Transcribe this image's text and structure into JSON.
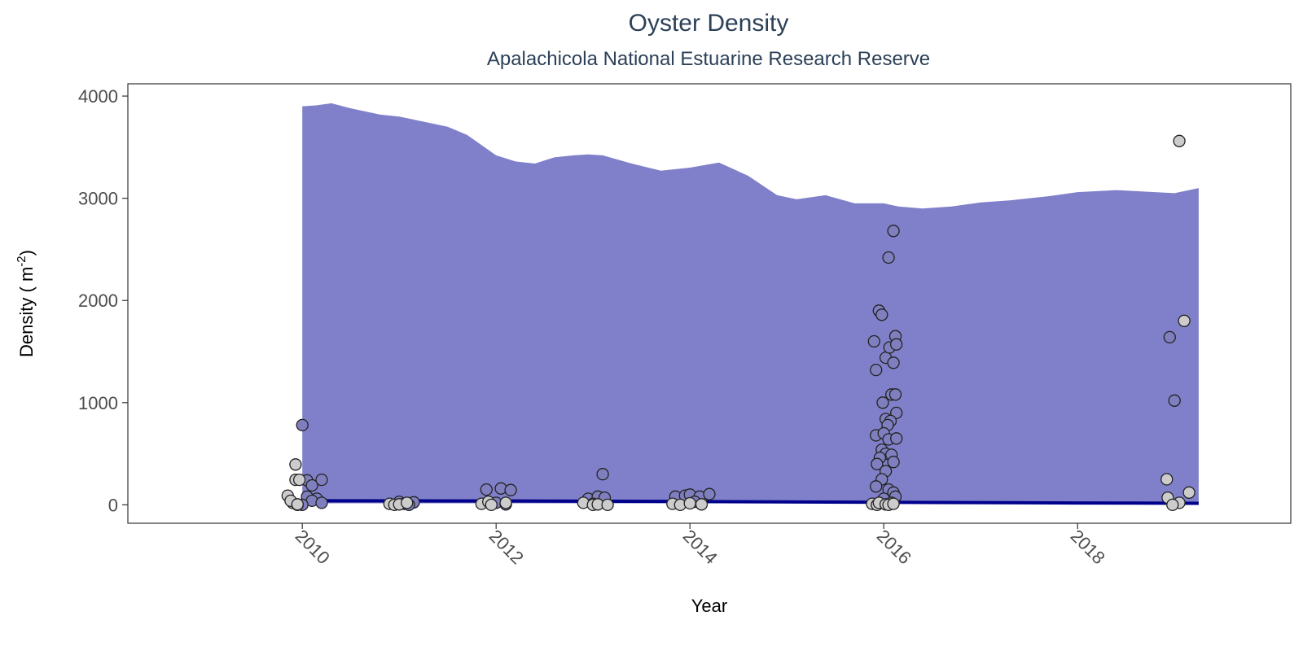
{
  "chart_data": {
    "type": "scatter",
    "title": "Oyster Density",
    "subtitle": "Apalachicola National Estuarine Research Reserve",
    "xlabel": "Year",
    "ylabel_main": "Density ( m",
    "ylabel_sup": "-2",
    "ylabel_end": ")",
    "xlim": [
      2008.2,
      2020.2
    ],
    "ylim": [
      -180,
      4120
    ],
    "x_ticks": [
      2010,
      2012,
      2014,
      2016,
      2018
    ],
    "x_tick_labels": [
      "2010",
      "2012",
      "2014",
      "2016",
      "2018"
    ],
    "y_ticks": [
      0,
      1000,
      2000,
      3000,
      4000
    ],
    "y_tick_labels": [
      "0",
      "1000",
      "2000",
      "3000",
      "4000"
    ],
    "grid": false,
    "colors": {
      "ribbon": "#8080ca",
      "trend_line": "#00008b",
      "point_blue": "#7f7fbf",
      "point_gray": "#cccccc",
      "point_stroke": "#222222",
      "title": "#2c4058"
    },
    "ribbon": {
      "x": [
        2010.0,
        2010.15,
        2010.3,
        2010.5,
        2010.8,
        2011.0,
        2011.2,
        2011.5,
        2011.7,
        2012.0,
        2012.2,
        2012.4,
        2012.6,
        2012.8,
        2012.95,
        2013.1,
        2013.4,
        2013.7,
        2014.0,
        2014.3,
        2014.6,
        2014.9,
        2015.1,
        2015.4,
        2015.7,
        2016.0,
        2016.15,
        2016.4,
        2016.7,
        2017.0,
        2017.3,
        2017.7,
        2018.0,
        2018.4,
        2018.8,
        2019.0,
        2019.25
      ],
      "upper": [
        3900,
        3910,
        3930,
        3880,
        3820,
        3800,
        3760,
        3700,
        3620,
        3420,
        3360,
        3340,
        3400,
        3420,
        3430,
        3420,
        3340,
        3270,
        3300,
        3350,
        3220,
        3030,
        2990,
        3030,
        2950,
        2950,
        2920,
        2900,
        2920,
        2960,
        2980,
        3020,
        3060,
        3080,
        3060,
        3050,
        3100
      ],
      "lower": [
        15,
        15,
        15,
        15,
        15,
        15,
        15,
        15,
        15,
        15,
        15,
        15,
        15,
        15,
        15,
        15,
        15,
        15,
        15,
        15,
        15,
        15,
        15,
        15,
        15,
        15,
        15,
        15,
        15,
        15,
        15,
        15,
        15,
        15,
        15,
        15,
        15
      ]
    },
    "trend": {
      "x": [
        2010.0,
        2012.0,
        2014.0,
        2016.0,
        2018.0,
        2019.25
      ],
      "y": [
        40,
        38,
        33,
        25,
        18,
        15
      ]
    },
    "series": [
      {
        "name": "",
        "color_key": "point_blue",
        "points": [
          [
            2010.0,
            780
          ],
          [
            2010.05,
            240
          ],
          [
            2010.1,
            190
          ],
          [
            2010.2,
            245
          ],
          [
            2010.05,
            80
          ],
          [
            2010.15,
            60
          ],
          [
            2010.1,
            40
          ],
          [
            2010.2,
            20
          ],
          [
            2010.0,
            0
          ],
          [
            2011.0,
            30
          ],
          [
            2011.05,
            10
          ],
          [
            2011.15,
            25
          ],
          [
            2011.1,
            0
          ],
          [
            2011.9,
            150
          ],
          [
            2012.0,
            20
          ],
          [
            2012.05,
            160
          ],
          [
            2012.15,
            145
          ],
          [
            2012.1,
            5
          ],
          [
            2012.95,
            60
          ],
          [
            2013.05,
            80
          ],
          [
            2013.12,
            70
          ],
          [
            2013.1,
            300
          ],
          [
            2013.0,
            10
          ],
          [
            2013.85,
            80
          ],
          [
            2013.95,
            90
          ],
          [
            2014.0,
            100
          ],
          [
            2014.1,
            80
          ],
          [
            2014.2,
            105
          ],
          [
            2014.05,
            30
          ],
          [
            2015.9,
            1600
          ],
          [
            2015.95,
            1900
          ],
          [
            2015.98,
            1860
          ],
          [
            2016.05,
            2420
          ],
          [
            2016.1,
            2680
          ],
          [
            2015.92,
            1320
          ],
          [
            2016.02,
            1440
          ],
          [
            2016.06,
            1540
          ],
          [
            2016.12,
            1650
          ],
          [
            2016.13,
            1570
          ],
          [
            2016.1,
            1390
          ],
          [
            2015.99,
            1000
          ],
          [
            2016.08,
            1080
          ],
          [
            2016.12,
            1080
          ],
          [
            2016.13,
            900
          ],
          [
            2016.02,
            840
          ],
          [
            2016.07,
            820
          ],
          [
            2016.04,
            780
          ],
          [
            2015.92,
            680
          ],
          [
            2016.0,
            700
          ],
          [
            2016.05,
            640
          ],
          [
            2016.13,
            650
          ],
          [
            2015.98,
            540
          ],
          [
            2016.02,
            500
          ],
          [
            2016.08,
            490
          ],
          [
            2016.1,
            420
          ],
          [
            2015.96,
            460
          ],
          [
            2015.93,
            400
          ],
          [
            2016.02,
            330
          ],
          [
            2015.98,
            250
          ],
          [
            2015.92,
            180
          ],
          [
            2016.05,
            150
          ],
          [
            2016.1,
            120
          ],
          [
            2016.12,
            80
          ],
          [
            2016.0,
            60
          ],
          [
            2016.08,
            20
          ],
          [
            2018.95,
            1640
          ],
          [
            2019.0,
            1020
          ]
        ]
      },
      {
        "name": "",
        "color_key": "point_gray",
        "points": [
          [
            2009.85,
            90
          ],
          [
            2009.9,
            20
          ],
          [
            2009.95,
            0
          ],
          [
            2009.88,
            40
          ],
          [
            2009.93,
            395
          ],
          [
            2009.93,
            245
          ],
          [
            2009.97,
            245
          ],
          [
            2009.95,
            5
          ],
          [
            2010.9,
            10
          ],
          [
            2010.95,
            0
          ],
          [
            2011.0,
            5
          ],
          [
            2011.08,
            20
          ],
          [
            2011.85,
            10
          ],
          [
            2011.92,
            30
          ],
          [
            2011.95,
            0
          ],
          [
            2012.1,
            20
          ],
          [
            2012.9,
            20
          ],
          [
            2013.0,
            0
          ],
          [
            2013.05,
            5
          ],
          [
            2013.15,
            0
          ],
          [
            2013.82,
            10
          ],
          [
            2013.9,
            0
          ],
          [
            2014.0,
            15
          ],
          [
            2014.12,
            5
          ],
          [
            2015.88,
            10
          ],
          [
            2015.93,
            0
          ],
          [
            2015.95,
            20
          ],
          [
            2016.02,
            5
          ],
          [
            2016.05,
            0
          ],
          [
            2016.1,
            10
          ],
          [
            2019.05,
            3560
          ],
          [
            2019.1,
            1800
          ],
          [
            2019.15,
            120
          ],
          [
            2018.92,
            250
          ],
          [
            2018.93,
            70
          ],
          [
            2019.05,
            20
          ],
          [
            2018.98,
            0
          ]
        ]
      }
    ]
  }
}
